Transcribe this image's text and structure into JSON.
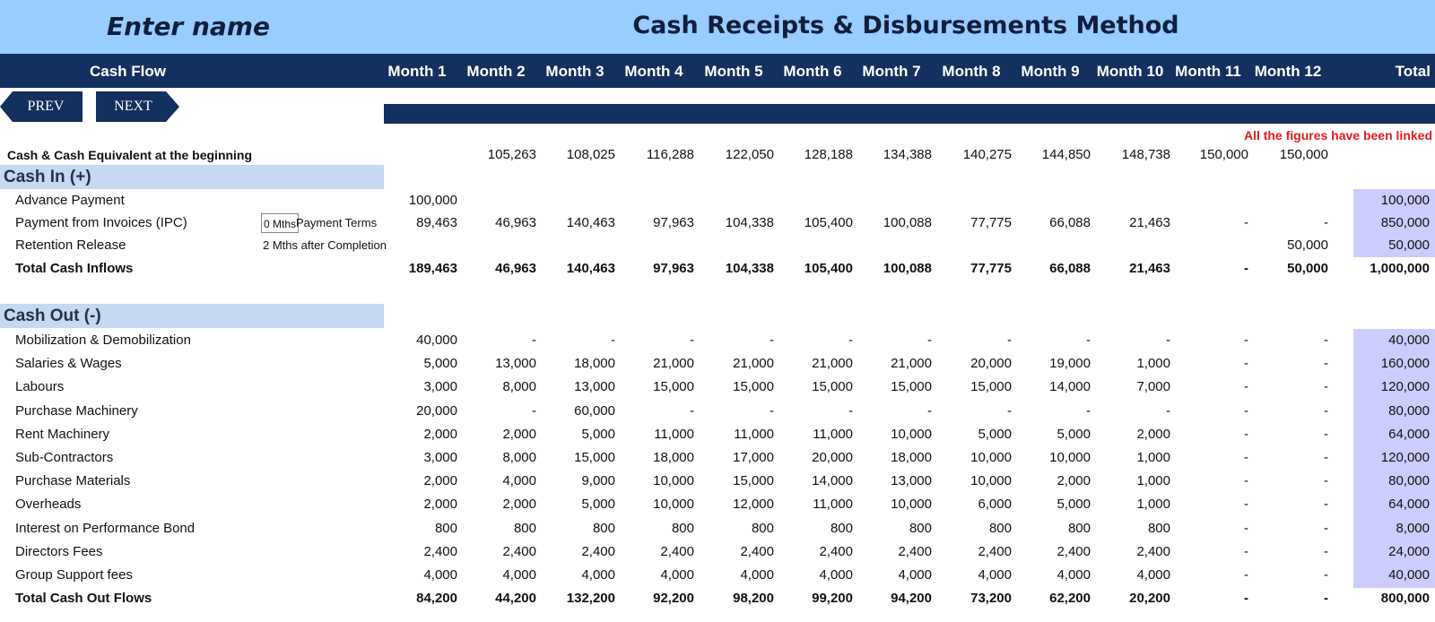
{
  "header": {
    "name_placeholder": "Enter name",
    "title": "Cash Receipts & Disbursements Method"
  },
  "columns": {
    "label_header": "Cash Flow",
    "months": [
      "Month 1",
      "Month 2",
      "Month 3",
      "Month 4",
      "Month 5",
      "Month 6",
      "Month 7",
      "Month 8",
      "Month 9",
      "Month 10",
      "Month 11",
      "Month 12"
    ],
    "total": "Total"
  },
  "nav": {
    "prev": "PREV",
    "next": "NEXT"
  },
  "note": "All the figures have been linked",
  "beginning": {
    "label": "Cash & Cash Equivalent at the beginning",
    "values": [
      "",
      "105,263",
      "108,025",
      "116,288",
      "122,050",
      "128,188",
      "134,388",
      "140,275",
      "144,850",
      "148,738",
      "150,000",
      "150,000"
    ],
    "total": ""
  },
  "cash_in": {
    "title": "Cash In (+)",
    "terms": {
      "input_value": "0 Mths",
      "payment_terms_label": "Payment Terms",
      "retention_note": "2 Mths after Completion"
    },
    "rows": [
      {
        "label": "Advance Payment",
        "values": [
          "100,000",
          "",
          "",
          "",
          "",
          "",
          "",
          "",
          "",
          "",
          "",
          ""
        ],
        "total": "100,000"
      },
      {
        "label": "Payment from Invoices (IPC)",
        "values": [
          "89,463",
          "46,963",
          "140,463",
          "97,963",
          "104,338",
          "105,400",
          "100,088",
          "77,775",
          "66,088",
          "21,463",
          "-",
          "-"
        ],
        "total": "850,000"
      },
      {
        "label": "Retention Release",
        "values": [
          "",
          "",
          "",
          "",
          "",
          "",
          "",
          "",
          "",
          "",
          "",
          "50,000"
        ],
        "total": "50,000"
      }
    ],
    "total_row": {
      "label": "Total Cash Inflows",
      "values": [
        "189,463",
        "46,963",
        "140,463",
        "97,963",
        "104,338",
        "105,400",
        "100,088",
        "77,775",
        "66,088",
        "21,463",
        "-",
        "50,000"
      ],
      "total": "1,000,000"
    }
  },
  "cash_out": {
    "title": "Cash Out (-)",
    "rows": [
      {
        "label": "Mobilization & Demobilization",
        "values": [
          "40,000",
          "-",
          "-",
          "-",
          "-",
          "-",
          "-",
          "-",
          "-",
          "-",
          "-",
          "-"
        ],
        "total": "40,000"
      },
      {
        "label": "Salaries & Wages",
        "values": [
          "5,000",
          "13,000",
          "18,000",
          "21,000",
          "21,000",
          "21,000",
          "21,000",
          "20,000",
          "19,000",
          "1,000",
          "-",
          "-"
        ],
        "total": "160,000"
      },
      {
        "label": "Labours",
        "values": [
          "3,000",
          "8,000",
          "13,000",
          "15,000",
          "15,000",
          "15,000",
          "15,000",
          "15,000",
          "14,000",
          "7,000",
          "-",
          "-"
        ],
        "total": "120,000"
      },
      {
        "label": "Purchase Machinery",
        "values": [
          "20,000",
          "-",
          "60,000",
          "-",
          "-",
          "-",
          "-",
          "-",
          "-",
          "-",
          "-",
          "-"
        ],
        "total": "80,000"
      },
      {
        "label": "Rent Machinery",
        "values": [
          "2,000",
          "2,000",
          "5,000",
          "11,000",
          "11,000",
          "11,000",
          "10,000",
          "5,000",
          "5,000",
          "2,000",
          "-",
          "-"
        ],
        "total": "64,000"
      },
      {
        "label": "Sub-Contractors",
        "values": [
          "3,000",
          "8,000",
          "15,000",
          "18,000",
          "17,000",
          "20,000",
          "18,000",
          "10,000",
          "10,000",
          "1,000",
          "-",
          "-"
        ],
        "total": "120,000"
      },
      {
        "label": "Purchase Materials",
        "values": [
          "2,000",
          "4,000",
          "9,000",
          "10,000",
          "15,000",
          "14,000",
          "13,000",
          "10,000",
          "2,000",
          "1,000",
          "-",
          "-"
        ],
        "total": "80,000"
      },
      {
        "label": "Overheads",
        "values": [
          "2,000",
          "2,000",
          "5,000",
          "10,000",
          "12,000",
          "11,000",
          "10,000",
          "6,000",
          "5,000",
          "1,000",
          "-",
          "-"
        ],
        "total": "64,000"
      },
      {
        "label": "Interest on Performance Bond",
        "values": [
          "800",
          "800",
          "800",
          "800",
          "800",
          "800",
          "800",
          "800",
          "800",
          "800",
          "-",
          "-"
        ],
        "total": "8,000"
      },
      {
        "label": "Directors Fees",
        "values": [
          "2,400",
          "2,400",
          "2,400",
          "2,400",
          "2,400",
          "2,400",
          "2,400",
          "2,400",
          "2,400",
          "2,400",
          "-",
          "-"
        ],
        "total": "24,000"
      },
      {
        "label": "Group Support fees",
        "values": [
          "4,000",
          "4,000",
          "4,000",
          "4,000",
          "4,000",
          "4,000",
          "4,000",
          "4,000",
          "4,000",
          "4,000",
          "-",
          "-"
        ],
        "total": "40,000"
      }
    ],
    "total_row": {
      "label": "Total Cash Out Flows",
      "values": [
        "84,200",
        "44,200",
        "132,200",
        "92,200",
        "98,200",
        "99,200",
        "94,200",
        "73,200",
        "62,200",
        "20,200",
        "-",
        "-"
      ],
      "total": "800,000"
    }
  }
}
